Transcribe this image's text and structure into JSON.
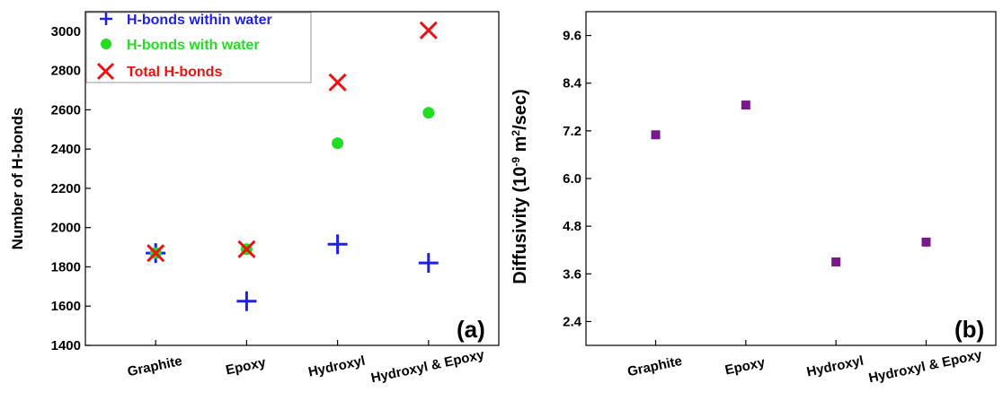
{
  "chart_data": [
    {
      "type": "scatter",
      "panel_label": "(a)",
      "ylabel": "Number of H-bonds",
      "categories": [
        "Graphite",
        "Epoxy",
        "Hydroxyl",
        "Hydroxyl & Epoxy"
      ],
      "ylim": [
        1400,
        3100
      ],
      "yticks": [
        1400,
        1600,
        1800,
        2000,
        2200,
        2400,
        2600,
        2800,
        3000
      ],
      "legend_position": "top-left",
      "series": [
        {
          "name": "H-bonds within water",
          "marker": "plus",
          "color": "#1f1fe6",
          "values": [
            1870,
            1625,
            1915,
            1820
          ]
        },
        {
          "name": "H-bonds with water",
          "marker": "circle",
          "color": "#22dd22",
          "values": [
            1870,
            1890,
            2430,
            2585
          ]
        },
        {
          "name": "Total H-bonds",
          "marker": "x",
          "color": "#ee1111",
          "values": [
            1870,
            1890,
            2740,
            3005
          ]
        }
      ]
    },
    {
      "type": "scatter",
      "panel_label": "(b)",
      "ylabel_prefix": "Diffusivity (10",
      "ylabel_exp1": "-9",
      "ylabel_mid": " m",
      "ylabel_exp2": "2",
      "ylabel_suffix": "/sec)",
      "categories": [
        "Graphite",
        "Epoxy",
        "Hydroxyl",
        "Hydroxyl & Epoxy"
      ],
      "ylim": [
        1.8,
        10.2
      ],
      "yticks": [
        "2.4",
        "3.6",
        "4.8",
        "6.0",
        "7.2",
        "8.4",
        "9.6"
      ],
      "series": [
        {
          "marker": "square",
          "color": "#7a1a8a",
          "values": [
            7.1,
            7.85,
            3.9,
            4.4
          ]
        }
      ]
    }
  ]
}
